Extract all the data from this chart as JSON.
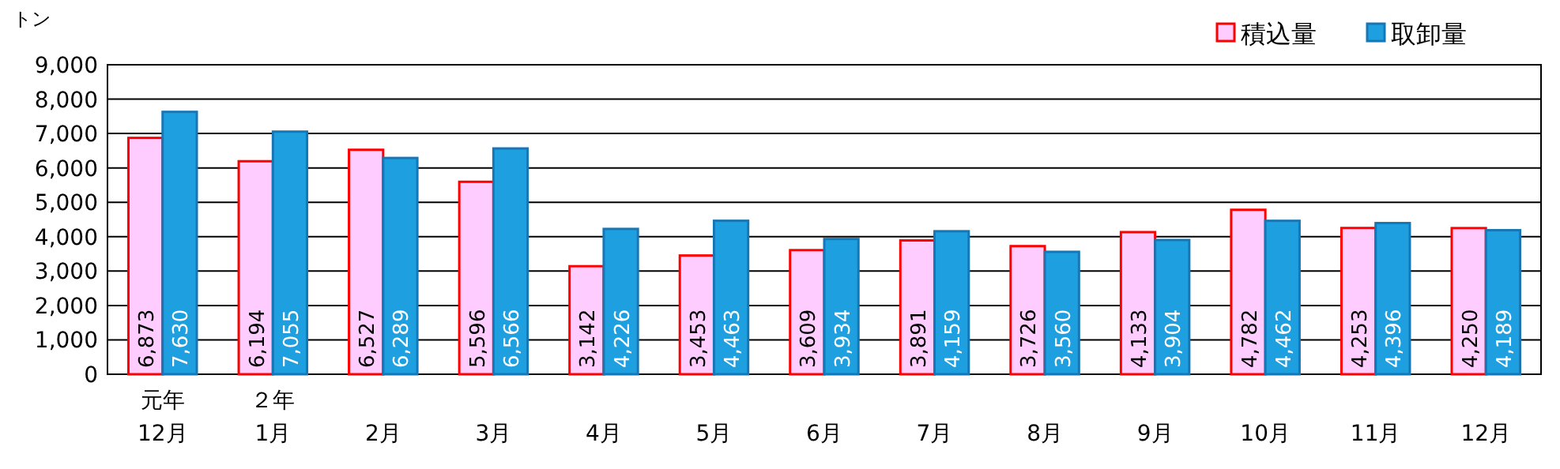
{
  "chart_data": {
    "type": "bar",
    "ylabel": "トン",
    "categories": [
      "元年\n12月",
      "２年\n1月",
      "2月",
      "3月",
      "4月",
      "5月",
      "6月",
      "7月",
      "8月",
      "9月",
      "10月",
      "11月",
      "12月"
    ],
    "series": [
      {
        "name": "積込量",
        "color": "#ffccff",
        "values": [
          6873,
          6194,
          6527,
          5596,
          3142,
          3453,
          3609,
          3891,
          3726,
          4133,
          4782,
          4253,
          4250
        ],
        "value_labels": [
          "6,873",
          "6,194",
          "6,527",
          "5,596",
          "3,142",
          "3,453",
          "3,609",
          "3,891",
          "3,726",
          "4,133",
          "4,782",
          "4,253",
          "4,250"
        ]
      },
      {
        "name": "取卸量",
        "color": "#1ea0e0",
        "values": [
          7630,
          7055,
          6289,
          6566,
          4226,
          4463,
          3934,
          4159,
          3560,
          3904,
          4462,
          4396,
          4189
        ],
        "value_labels": [
          "7,630",
          "7,055",
          "6,289",
          "6,566",
          "4,226",
          "4,463",
          "3,934",
          "4,159",
          "3,560",
          "3,904",
          "4,462",
          "4,396",
          "4,189"
        ]
      }
    ],
    "ylim": [
      0,
      9000
    ],
    "yticks": [
      0,
      {
        "value": 1000,
        "label": "1,000"
      },
      {
        "value": 2000,
        "label": "2,000"
      },
      {
        "value": 3000,
        "label": "3,000"
      },
      {
        "value": 4000,
        "label": "4,000"
      },
      {
        "value": 5000,
        "label": "5,000"
      },
      {
        "value": 6000,
        "label": "6,000"
      },
      {
        "value": 7000,
        "label": "7,000"
      },
      {
        "value": 8000,
        "label": "8,000"
      },
      {
        "value": 9000,
        "label": "9,000"
      }
    ],
    "grid": "y",
    "legend": "top right"
  }
}
